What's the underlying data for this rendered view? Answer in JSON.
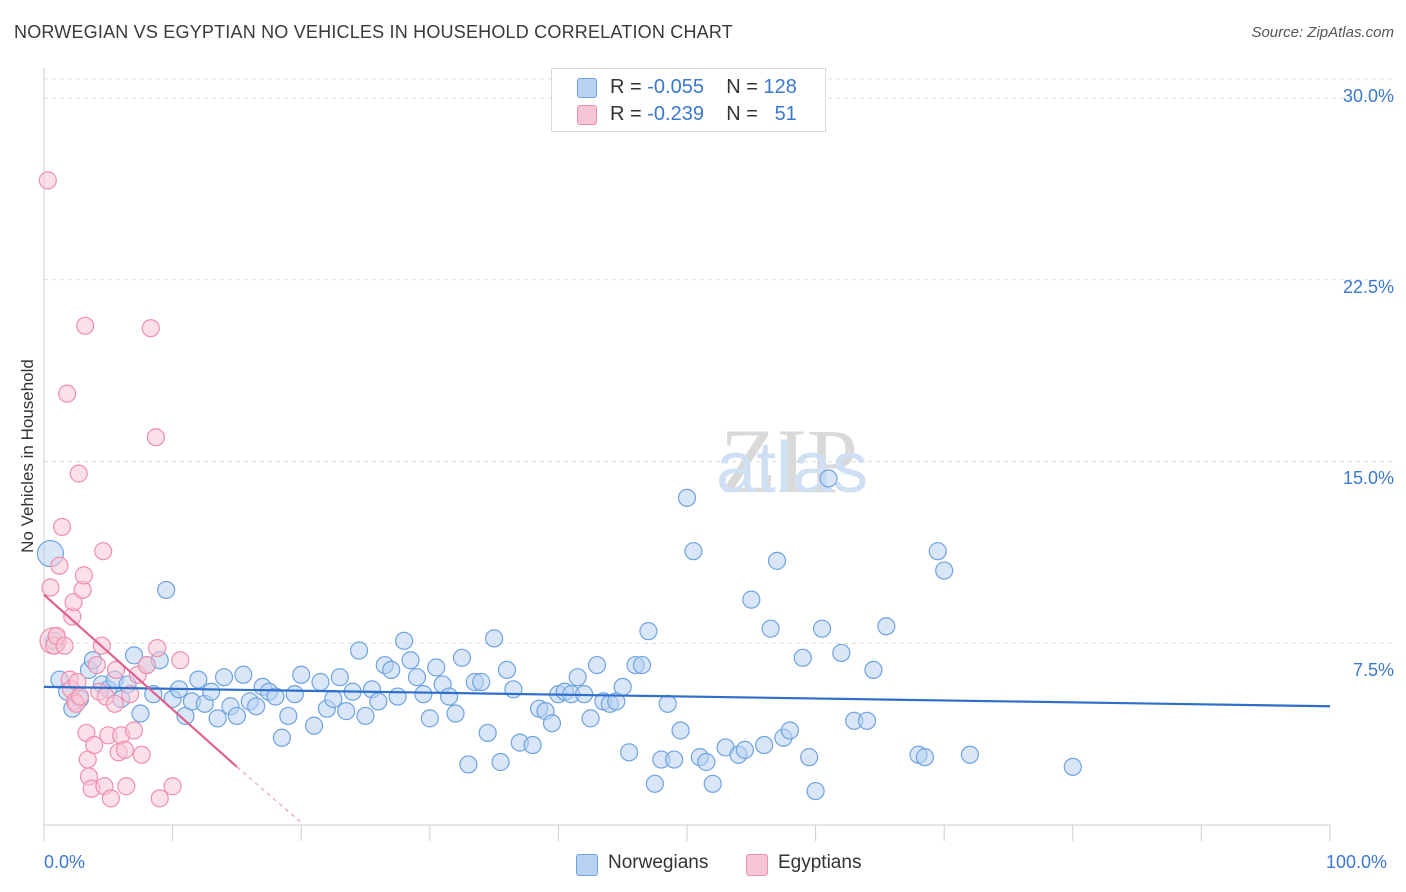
{
  "chart_data": {
    "type": "scatter",
    "title": "NORWEGIAN VS EGYPTIAN NO VEHICLES IN HOUSEHOLD CORRELATION CHART",
    "source": "Source: ZipAtlas.com",
    "xlabel": "",
    "ylabel": "No Vehicles in Household",
    "xlim": [
      0,
      100
    ],
    "ylim": [
      0,
      30
    ],
    "x_tick_labels": [
      "0.0%",
      "100.0%"
    ],
    "y_ticks": [
      7.5,
      15.0,
      22.5,
      30.0
    ],
    "y_tick_labels": [
      "7.5%",
      "15.0%",
      "22.5%",
      "30.0%"
    ],
    "grid": "horizontal dashed",
    "watermark": "ZIPatlas",
    "legend": [
      {
        "label": "Norwegians",
        "r_label": "R =",
        "r": "-0.055",
        "n_label": "N =",
        "n": "128"
      },
      {
        "label": "Egyptians",
        "r_label": "R =",
        "r": "-0.239",
        "n_label": "N =",
        "n": "51"
      }
    ],
    "series": [
      {
        "name": "Norwegians",
        "color": "#6fa3e0",
        "fill": "#b8d2f2",
        "trend": {
          "x": [
            0,
            100
          ],
          "y": [
            5.7,
            4.9
          ],
          "color": "#2f6fcc"
        },
        "points": [
          [
            0.5,
            11.2
          ],
          [
            0.8,
            7.6
          ],
          [
            1.2,
            6.0
          ],
          [
            1.8,
            5.5
          ],
          [
            2.2,
            4.8
          ],
          [
            2.8,
            5.2
          ],
          [
            3.5,
            6.4
          ],
          [
            3.8,
            6.8
          ],
          [
            4.5,
            5.8
          ],
          [
            5.0,
            5.6
          ],
          [
            5.5,
            6.0
          ],
          [
            6.0,
            5.2
          ],
          [
            6.5,
            5.8
          ],
          [
            7.0,
            7.0
          ],
          [
            7.5,
            4.6
          ],
          [
            8.0,
            6.6
          ],
          [
            8.5,
            5.4
          ],
          [
            9.0,
            6.8
          ],
          [
            9.5,
            9.7
          ],
          [
            10.0,
            5.2
          ],
          [
            10.5,
            5.6
          ],
          [
            11.0,
            4.5
          ],
          [
            11.5,
            5.1
          ],
          [
            12.0,
            6.0
          ],
          [
            12.5,
            5.0
          ],
          [
            13.0,
            5.5
          ],
          [
            13.5,
            4.4
          ],
          [
            14.0,
            6.1
          ],
          [
            14.5,
            4.9
          ],
          [
            15.0,
            4.5
          ],
          [
            15.5,
            6.2
          ],
          [
            16.0,
            5.1
          ],
          [
            16.5,
            4.9
          ],
          [
            17.0,
            5.7
          ],
          [
            17.5,
            5.5
          ],
          [
            18.0,
            5.3
          ],
          [
            18.5,
            3.6
          ],
          [
            19.0,
            4.5
          ],
          [
            19.5,
            5.4
          ],
          [
            20.0,
            6.2
          ],
          [
            21.0,
            4.1
          ],
          [
            21.5,
            5.9
          ],
          [
            22.0,
            4.8
          ],
          [
            22.5,
            5.2
          ],
          [
            23.0,
            6.1
          ],
          [
            23.5,
            4.7
          ],
          [
            24.0,
            5.5
          ],
          [
            24.5,
            7.2
          ],
          [
            25.0,
            4.5
          ],
          [
            25.5,
            5.6
          ],
          [
            26.0,
            5.1
          ],
          [
            26.5,
            6.6
          ],
          [
            27.0,
            6.4
          ],
          [
            27.5,
            5.3
          ],
          [
            28.0,
            7.6
          ],
          [
            28.5,
            6.8
          ],
          [
            29.0,
            6.1
          ],
          [
            29.5,
            5.4
          ],
          [
            30.0,
            4.4
          ],
          [
            30.5,
            6.5
          ],
          [
            31.0,
            5.8
          ],
          [
            31.5,
            5.3
          ],
          [
            32.0,
            4.6
          ],
          [
            32.5,
            6.9
          ],
          [
            33.0,
            2.5
          ],
          [
            33.5,
            5.9
          ],
          [
            34.0,
            5.9
          ],
          [
            34.5,
            3.8
          ],
          [
            35.0,
            7.7
          ],
          [
            35.5,
            2.6
          ],
          [
            36.0,
            6.4
          ],
          [
            36.5,
            5.6
          ],
          [
            37.0,
            3.4
          ],
          [
            38.0,
            3.3
          ],
          [
            38.5,
            4.8
          ],
          [
            39.0,
            4.7
          ],
          [
            39.5,
            4.2
          ],
          [
            40.0,
            5.4
          ],
          [
            40.5,
            5.5
          ],
          [
            41.0,
            5.4
          ],
          [
            41.5,
            6.1
          ],
          [
            42.0,
            5.4
          ],
          [
            42.5,
            4.4
          ],
          [
            43.0,
            6.6
          ],
          [
            43.5,
            5.1
          ],
          [
            44.0,
            5.0
          ],
          [
            44.5,
            5.1
          ],
          [
            45.0,
            5.7
          ],
          [
            45.5,
            3.0
          ],
          [
            46.0,
            6.6
          ],
          [
            46.5,
            6.6
          ],
          [
            47.0,
            8.0
          ],
          [
            47.5,
            1.7
          ],
          [
            48.0,
            2.7
          ],
          [
            48.5,
            5.0
          ],
          [
            49.0,
            2.7
          ],
          [
            49.5,
            3.9
          ],
          [
            50.0,
            13.5
          ],
          [
            50.5,
            11.3
          ],
          [
            51.0,
            2.8
          ],
          [
            51.5,
            2.6
          ],
          [
            52.0,
            1.7
          ],
          [
            53.0,
            3.2
          ],
          [
            54.0,
            2.9
          ],
          [
            54.5,
            3.1
          ],
          [
            55.0,
            9.3
          ],
          [
            56.0,
            3.3
          ],
          [
            56.5,
            8.1
          ],
          [
            57.0,
            10.9
          ],
          [
            57.5,
            3.6
          ],
          [
            58.0,
            3.9
          ],
          [
            59.0,
            6.9
          ],
          [
            59.5,
            2.8
          ],
          [
            60.0,
            1.4
          ],
          [
            60.5,
            8.1
          ],
          [
            61.0,
            14.3
          ],
          [
            62.0,
            7.1
          ],
          [
            63.0,
            4.3
          ],
          [
            64.0,
            4.3
          ],
          [
            64.5,
            6.4
          ],
          [
            65.5,
            8.2
          ],
          [
            68.0,
            2.9
          ],
          [
            68.5,
            2.8
          ],
          [
            69.5,
            11.3
          ],
          [
            70.0,
            10.5
          ],
          [
            72.0,
            2.9
          ],
          [
            80.0,
            2.4
          ]
        ]
      },
      {
        "name": "Egyptians",
        "color": "#ef8fae",
        "fill": "#f7c6d6",
        "trend": {
          "x": [
            0,
            15
          ],
          "y": [
            9.5,
            2.4
          ],
          "dashed_x": [
            15,
            20
          ],
          "dashed_y": [
            2.4,
            0.1
          ],
          "color": "#e0608e"
        },
        "points": [
          [
            0.3,
            26.6
          ],
          [
            0.5,
            9.8
          ],
          [
            0.7,
            7.6
          ],
          [
            0.8,
            7.4
          ],
          [
            1.0,
            7.8
          ],
          [
            1.2,
            10.7
          ],
          [
            1.4,
            12.3
          ],
          [
            1.6,
            7.4
          ],
          [
            1.8,
            17.8
          ],
          [
            2.0,
            6.0
          ],
          [
            2.1,
            5.6
          ],
          [
            2.2,
            8.6
          ],
          [
            2.3,
            9.2
          ],
          [
            2.4,
            5.1
          ],
          [
            2.5,
            5.0
          ],
          [
            2.6,
            5.9
          ],
          [
            2.7,
            14.5
          ],
          [
            2.8,
            5.3
          ],
          [
            3.0,
            9.7
          ],
          [
            3.1,
            10.3
          ],
          [
            3.2,
            20.6
          ],
          [
            3.3,
            3.8
          ],
          [
            3.4,
            2.7
          ],
          [
            3.5,
            2.0
          ],
          [
            3.7,
            1.5
          ],
          [
            3.9,
            3.3
          ],
          [
            4.1,
            6.6
          ],
          [
            4.3,
            5.5
          ],
          [
            4.5,
            7.4
          ],
          [
            4.6,
            11.3
          ],
          [
            4.7,
            1.6
          ],
          [
            4.8,
            5.3
          ],
          [
            5.0,
            3.7
          ],
          [
            5.2,
            1.1
          ],
          [
            5.5,
            5.0
          ],
          [
            5.6,
            6.4
          ],
          [
            5.8,
            3.0
          ],
          [
            6.0,
            3.7
          ],
          [
            6.3,
            3.1
          ],
          [
            6.4,
            1.6
          ],
          [
            6.7,
            5.4
          ],
          [
            7.0,
            3.9
          ],
          [
            7.3,
            6.2
          ],
          [
            7.6,
            2.9
          ],
          [
            8.0,
            6.6
          ],
          [
            8.3,
            20.5
          ],
          [
            8.7,
            16.0
          ],
          [
            8.8,
            7.3
          ],
          [
            9.0,
            1.1
          ],
          [
            10.0,
            1.6
          ],
          [
            10.6,
            6.8
          ]
        ]
      }
    ]
  }
}
